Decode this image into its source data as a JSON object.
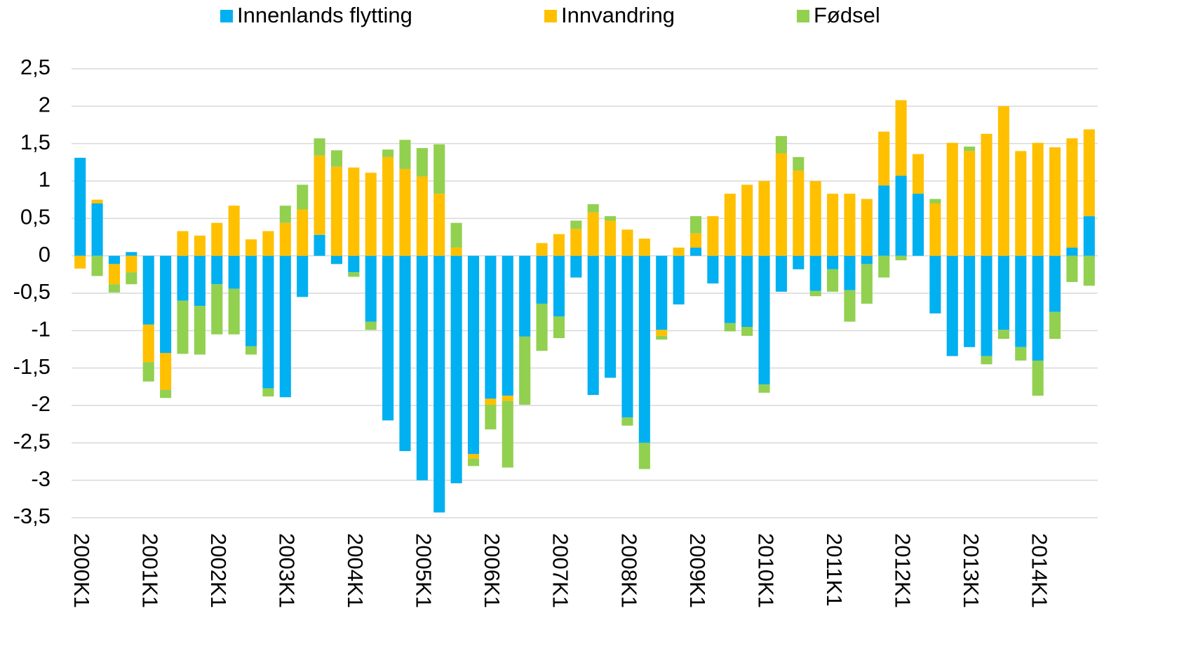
{
  "chart_data": {
    "type": "bar",
    "stacked": true,
    "categories": [
      "2000K1",
      null,
      null,
      null,
      "2001K1",
      null,
      null,
      null,
      "2002K1",
      null,
      null,
      null,
      "2003K1",
      null,
      null,
      null,
      "2004K1",
      null,
      null,
      null,
      "2005K1",
      null,
      null,
      null,
      "2006K1",
      null,
      null,
      null,
      "2007K1",
      null,
      null,
      null,
      "2008K1",
      null,
      null,
      null,
      "2009K1",
      null,
      null,
      null,
      "2010K1",
      null,
      null,
      null,
      "2011K1",
      null,
      null,
      null,
      "2012K1",
      null,
      null,
      null,
      "2013K1",
      null,
      null,
      null,
      "2014K1",
      null,
      null,
      null
    ],
    "series": [
      {
        "name": "Innenlands flytting",
        "color": "#00b0f0",
        "values": [
          1.31,
          0.7,
          -0.11,
          0.05,
          -0.92,
          -1.3,
          -0.6,
          -0.67,
          -0.38,
          -0.44,
          -1.21,
          -1.77,
          -1.89,
          -0.55,
          0.28,
          -0.11,
          -0.22,
          -0.88,
          -2.2,
          -2.61,
          -3.0,
          -3.43,
          -3.04,
          -2.65,
          -1.91,
          -1.87,
          -1.08,
          -0.64,
          -0.81,
          -0.29,
          -1.86,
          -1.63,
          -2.16,
          -2.5,
          -0.99,
          -0.65,
          0.11,
          -0.37,
          -0.9,
          -0.95,
          -1.72,
          -0.48,
          -0.18,
          -0.47,
          -0.18,
          -0.46,
          -0.11,
          0.94,
          1.07,
          0.83,
          -0.77,
          -1.34,
          -1.22,
          -1.34,
          -0.99,
          -1.22,
          -1.4,
          -0.75,
          0.11,
          0.53
        ]
      },
      {
        "name": "Innvandring",
        "color": "#ffc000",
        "values": [
          -0.17,
          0.05,
          -0.27,
          -0.22,
          -0.5,
          -0.49,
          0.33,
          0.27,
          0.44,
          0.67,
          0.22,
          0.33,
          0.44,
          0.62,
          1.06,
          1.19,
          1.18,
          1.11,
          1.32,
          1.16,
          1.06,
          0.83,
          0.11,
          -0.06,
          -0.08,
          -0.07,
          0,
          0.17,
          0.29,
          0.36,
          0.58,
          0.47,
          0.35,
          0.23,
          -0.08,
          0.11,
          0.19,
          0.53,
          0.83,
          0.95,
          1.0,
          1.37,
          1.14,
          1.0,
          0.83,
          0.83,
          0.76,
          0.72,
          1.01,
          0.53,
          0.7,
          1.51,
          1.4,
          1.63,
          2.0,
          1.4,
          1.51,
          1.45,
          1.46,
          1.16
        ]
      },
      {
        "name": "Fødsel",
        "color": "#92d050",
        "values": [
          0,
          -0.27,
          -0.11,
          -0.16,
          -0.26,
          -0.11,
          -0.71,
          -0.65,
          -0.67,
          -0.61,
          -0.11,
          -0.11,
          0.23,
          0.33,
          0.23,
          0.22,
          -0.06,
          -0.11,
          0.1,
          0.39,
          0.38,
          0.66,
          0.33,
          -0.1,
          -0.33,
          -0.89,
          -0.91,
          -0.63,
          -0.29,
          0.11,
          0.11,
          0.06,
          -0.11,
          -0.35,
          -0.05,
          0,
          0.23,
          0,
          -0.11,
          -0.12,
          -0.11,
          0.23,
          0.18,
          -0.07,
          -0.3,
          -0.42,
          -0.53,
          -0.29,
          -0.06,
          0,
          0.06,
          0,
          0.06,
          -0.11,
          -0.12,
          -0.18,
          -0.47,
          -0.36,
          -0.35,
          -0.4
        ]
      }
    ],
    "ylim": [
      -3.5,
      2.5
    ],
    "yticks": [
      {
        "value": 2.5,
        "label": "2,5"
      },
      2,
      {
        "value": 1.5,
        "label": "1,5"
      },
      1,
      {
        "value": 0.5,
        "label": "0,5"
      },
      0,
      {
        "value": -0.5,
        "label": "-0,5"
      },
      -1,
      {
        "value": -1.5,
        "label": "-1,5"
      },
      -2,
      {
        "value": -2.5,
        "label": "-2,5"
      },
      -3,
      {
        "value": -3.5,
        "label": "-3,5"
      }
    ],
    "grid": true,
    "legend": "top"
  }
}
